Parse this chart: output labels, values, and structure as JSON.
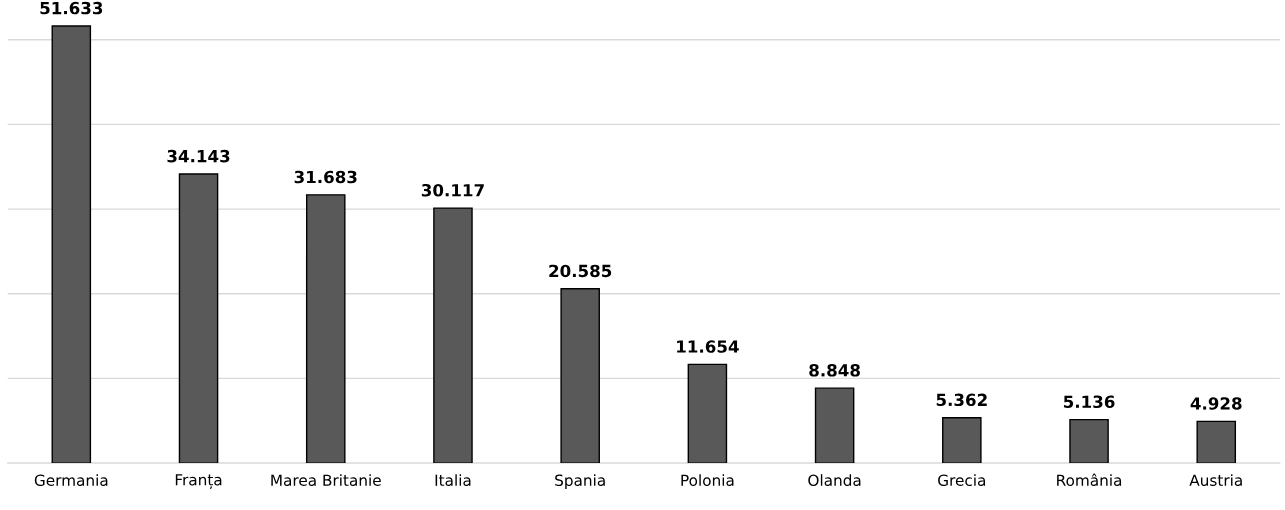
{
  "chart_data": {
    "type": "bar",
    "categories": [
      "Germania",
      "Franța",
      "Marea Britanie",
      "Italia",
      "Spania",
      "Polonia",
      "Olanda",
      "Grecia",
      "România",
      "Austria"
    ],
    "values": [
      51.633,
      34.143,
      31.683,
      30.117,
      20.585,
      11.654,
      8.848,
      5.362,
      5.136,
      4.928
    ],
    "color": "#595959",
    "data_labels": true,
    "yticks": [
      {
        "value": 0,
        "label": null
      },
      {
        "value": 10,
        "label": null
      },
      {
        "value": 20,
        "label": null
      },
      {
        "value": 30,
        "label": null
      },
      {
        "value": 40,
        "label": null
      },
      {
        "value": 50,
        "label": null
      }
    ],
    "grid": "y",
    "tick_labels": "x"
  }
}
